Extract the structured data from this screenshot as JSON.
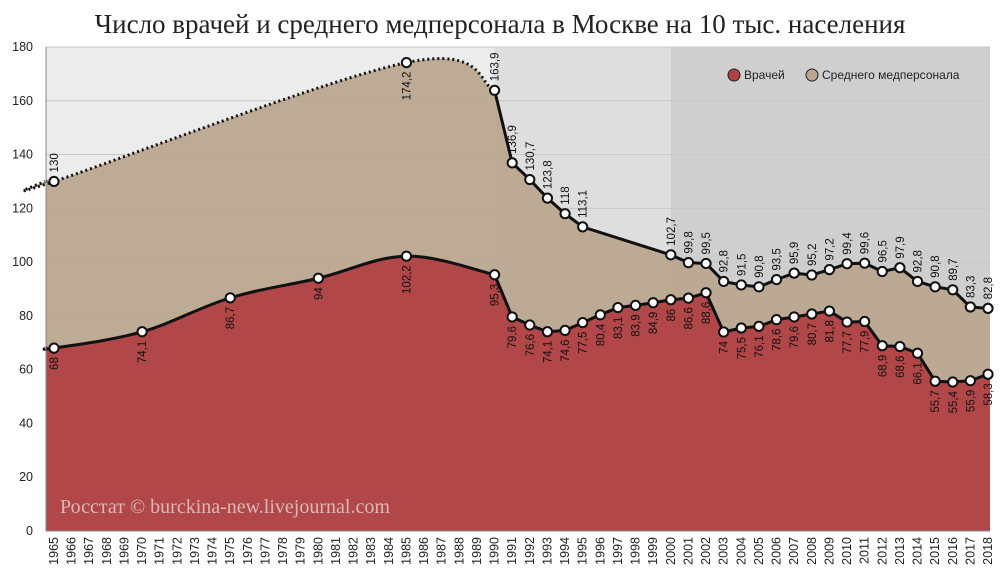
{
  "chart_data": {
    "type": "area",
    "title": "Число врачей и среднего медперсонала в Москве на 10 тыс. населения",
    "watermark": "Росстат © burckina-new.livejournal.com",
    "xlabel": "",
    "ylabel": "",
    "ylim": [
      0,
      180
    ],
    "yticks": [
      0,
      20,
      40,
      60,
      80,
      100,
      120,
      140,
      160,
      180
    ],
    "xlim": [
      1965,
      2018
    ],
    "xticks": [
      1965,
      1966,
      1967,
      1968,
      1969,
      1970,
      1971,
      1972,
      1973,
      1974,
      1975,
      1976,
      1977,
      1978,
      1979,
      1980,
      1981,
      1982,
      1983,
      1984,
      1985,
      1986,
      1987,
      1988,
      1989,
      1990,
      1991,
      1992,
      1993,
      1994,
      1995,
      1996,
      1997,
      1998,
      1999,
      2000,
      2001,
      2002,
      2003,
      2004,
      2005,
      2006,
      2007,
      2008,
      2009,
      2010,
      2011,
      2012,
      2013,
      2014,
      2015,
      2016,
      2017,
      2018
    ],
    "legend_position": "top-right",
    "colors": {
      "doctors": "#b04143",
      "nurses": "#baa68f",
      "band1": "#ececec",
      "band2": "#dedede",
      "band3": "#cfcfcf",
      "line": "#111111",
      "marker_fill": "#ffffff"
    },
    "bands": [
      {
        "from": 1965,
        "to": 1990
      },
      {
        "from": 1990,
        "to": 2000
      },
      {
        "from": 2000,
        "to": 2018
      }
    ],
    "series": [
      {
        "name": "Врачей",
        "key": "doctors",
        "points": [
          {
            "x": 1965,
            "y": 68,
            "label": "68"
          },
          {
            "x": 1970,
            "y": 74.1,
            "label": "74,1"
          },
          {
            "x": 1975,
            "y": 86.7,
            "label": "86,7"
          },
          {
            "x": 1980,
            "y": 94,
            "label": "94"
          },
          {
            "x": 1985,
            "y": 102.2,
            "label": "102,2"
          },
          {
            "x": 1990,
            "y": 95.3,
            "label": "95,3"
          },
          {
            "x": 1991,
            "y": 79.6,
            "label": "79,6"
          },
          {
            "x": 1992,
            "y": 76.6,
            "label": "76,6"
          },
          {
            "x": 1993,
            "y": 74.1,
            "label": "74,1"
          },
          {
            "x": 1994,
            "y": 74.6,
            "label": "74,6"
          },
          {
            "x": 1995,
            "y": 77.5,
            "label": "77,5"
          },
          {
            "x": 1996,
            "y": 80.4,
            "label": "80,4"
          },
          {
            "x": 1997,
            "y": 83.1,
            "label": "83,1"
          },
          {
            "x": 1998,
            "y": 83.9,
            "label": "83,9"
          },
          {
            "x": 1999,
            "y": 84.9,
            "label": "84,9"
          },
          {
            "x": 2000,
            "y": 86,
            "label": "86"
          },
          {
            "x": 2001,
            "y": 86.6,
            "label": "86,6"
          },
          {
            "x": 2002,
            "y": 88.6,
            "label": "88,6"
          },
          {
            "x": 2003,
            "y": 74,
            "label": "74"
          },
          {
            "x": 2004,
            "y": 75.5,
            "label": "75,5"
          },
          {
            "x": 2005,
            "y": 76.1,
            "label": "76,1"
          },
          {
            "x": 2006,
            "y": 78.6,
            "label": "78,6"
          },
          {
            "x": 2007,
            "y": 79.6,
            "label": "79,6"
          },
          {
            "x": 2008,
            "y": 80.7,
            "label": "80,7"
          },
          {
            "x": 2009,
            "y": 81.8,
            "label": "81,8"
          },
          {
            "x": 2010,
            "y": 77.7,
            "label": "77,7"
          },
          {
            "x": 2011,
            "y": 77.9,
            "label": "77,9"
          },
          {
            "x": 2012,
            "y": 68.9,
            "label": "68,9"
          },
          {
            "x": 2013,
            "y": 68.6,
            "label": "68,6"
          },
          {
            "x": 2014,
            "y": 66.1,
            "label": "66,1"
          },
          {
            "x": 2015,
            "y": 55.7,
            "label": "55,7"
          },
          {
            "x": 2016,
            "y": 55.4,
            "label": "55,4"
          },
          {
            "x": 2017,
            "y": 55.9,
            "label": "55,9"
          },
          {
            "x": 2018,
            "y": 58.3,
            "label": "58,3"
          }
        ]
      },
      {
        "name": "Среднего медперсонала",
        "key": "nurses",
        "points": [
          {
            "x": 1965,
            "y": 130,
            "label": "130"
          },
          {
            "x": 1985,
            "y": 174.2,
            "label": "174,2"
          },
          {
            "x": 1990,
            "y": 163.9,
            "label": "163,9"
          },
          {
            "x": 1991,
            "y": 136.9,
            "label": "136,9"
          },
          {
            "x": 1992,
            "y": 130.7,
            "label": "130,7"
          },
          {
            "x": 1993,
            "y": 123.8,
            "label": "123,8"
          },
          {
            "x": 1994,
            "y": 118,
            "label": "118"
          },
          {
            "x": 1995,
            "y": 113.1,
            "label": "113,1"
          },
          {
            "x": 2000,
            "y": 102.7,
            "label": "102,7"
          },
          {
            "x": 2001,
            "y": 99.8,
            "label": "99,8"
          },
          {
            "x": 2002,
            "y": 99.5,
            "label": "99,5"
          },
          {
            "x": 2003,
            "y": 92.8,
            "label": "92,8"
          },
          {
            "x": 2004,
            "y": 91.5,
            "label": "91,5"
          },
          {
            "x": 2005,
            "y": 90.8,
            "label": "90,8"
          },
          {
            "x": 2006,
            "y": 93.5,
            "label": "93,5"
          },
          {
            "x": 2007,
            "y": 95.9,
            "label": "95,9"
          },
          {
            "x": 2008,
            "y": 95.2,
            "label": "95,2"
          },
          {
            "x": 2009,
            "y": 97.2,
            "label": "97,2"
          },
          {
            "x": 2010,
            "y": 99.4,
            "label": "99,4"
          },
          {
            "x": 2011,
            "y": 99.6,
            "label": "99,6"
          },
          {
            "x": 2012,
            "y": 96.5,
            "label": "96,5"
          },
          {
            "x": 2013,
            "y": 97.9,
            "label": "97,9"
          },
          {
            "x": 2014,
            "y": 92.8,
            "label": "92,8"
          },
          {
            "x": 2015,
            "y": 90.8,
            "label": "90,8"
          },
          {
            "x": 2016,
            "y": 89.7,
            "label": "89,7"
          },
          {
            "x": 2017,
            "y": 83.3,
            "label": "83,3"
          },
          {
            "x": 2018,
            "y": 82.8,
            "label": "82,8"
          }
        ]
      }
    ]
  }
}
